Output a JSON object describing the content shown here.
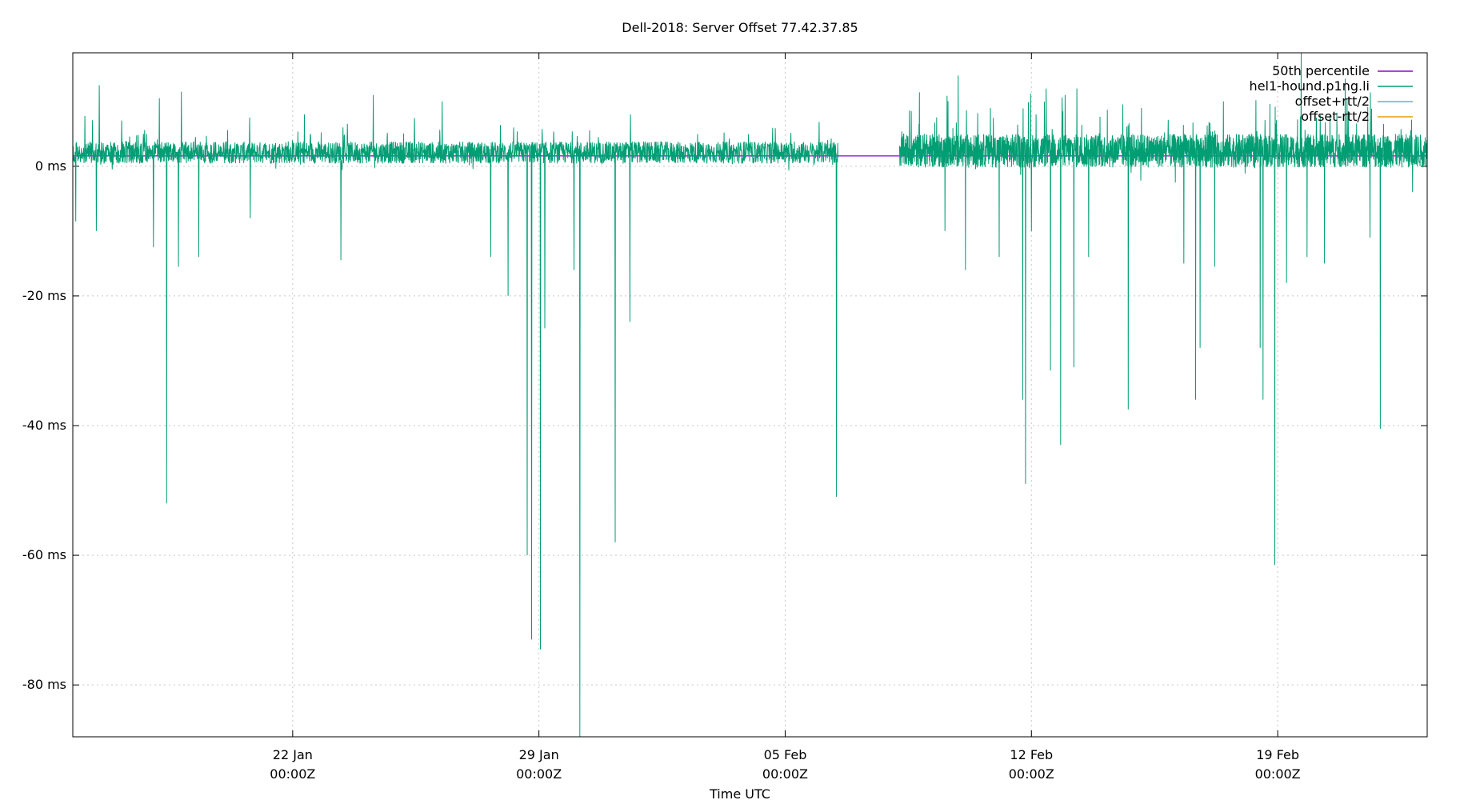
{
  "chart_data": {
    "type": "line",
    "title": "Dell-2018: Server Offset 77.42.37.85",
    "xlabel": "Time UTC",
    "ylabel": "",
    "xlim": [
      "2018-01-15T18:00Z",
      "2018-02-23T06:00Z"
    ],
    "ylim": [
      -88,
      17.5
    ],
    "grid": true,
    "legend_position": "top-right",
    "y_ticks": [
      {
        "value": 0,
        "label": "0 ms"
      },
      {
        "value": -20,
        "label": "-20 ms"
      },
      {
        "value": -40,
        "label": "-40 ms"
      },
      {
        "value": -60,
        "label": "-60 ms"
      },
      {
        "value": -80,
        "label": "-80 ms"
      }
    ],
    "x_ticks": [
      {
        "value": "2018-01-22T00:00Z",
        "line1": "22 Jan",
        "line2": "00:00Z"
      },
      {
        "value": "2018-01-29T00:00Z",
        "line1": "29 Jan",
        "line2": "00:00Z"
      },
      {
        "value": "2018-02-05T00:00Z",
        "line1": "05 Feb",
        "line2": "00:00Z"
      },
      {
        "value": "2018-02-12T00:00Z",
        "line1": "12 Feb",
        "line2": "00:00Z"
      },
      {
        "value": "2018-02-19T00:00Z",
        "line1": "19 Feb",
        "line2": "00:00Z"
      }
    ],
    "legend": [
      {
        "label": "50th percentile",
        "color": "#9400d3"
      },
      {
        "label": "hel1-hound.p1ng.li",
        "color": "#009e73"
      },
      {
        "label": "offset+rtt/2",
        "color": "#56b4e9"
      },
      {
        "label": "offset-rtt/2",
        "color": "#e69f00"
      }
    ],
    "series": [
      {
        "name": "50th percentile",
        "color": "#9400d3",
        "points": [
          [
            "2018-01-15T18:00Z",
            1.6
          ],
          [
            "2018-02-23T06:00Z",
            1.6
          ]
        ]
      },
      {
        "name": "hel1-hound.p1ng.li",
        "color": "#009e73",
        "baseline": 1.6,
        "segments": [
          {
            "start": "2018-01-15T18:00Z",
            "end": "2018-02-06T12:00Z"
          },
          {
            "start": "2018-02-08T06:00Z",
            "end": "2018-02-23T06:00Z"
          }
        ],
        "spikes": [
          [
            "2018-01-15T20:00Z",
            -8.5
          ],
          [
            "2018-01-16T12:00Z",
            12.5
          ],
          [
            "2018-01-16T10:00Z",
            -10
          ],
          [
            "2018-01-18T01:00Z",
            -12.5
          ],
          [
            "2018-01-18T05:00Z",
            10.5
          ],
          [
            "2018-01-18T10:00Z",
            -52
          ],
          [
            "2018-01-18T18:00Z",
            -15.5
          ],
          [
            "2018-01-18T20:00Z",
            11.5
          ],
          [
            "2018-01-19T08:00Z",
            -14
          ],
          [
            "2018-01-20T19:00Z",
            -8
          ],
          [
            "2018-01-22T08:00Z",
            8
          ],
          [
            "2018-01-23T09:00Z",
            -14.5
          ],
          [
            "2018-01-24T07:00Z",
            11
          ],
          [
            "2018-01-26T06:00Z",
            10
          ],
          [
            "2018-01-27T15:00Z",
            -14
          ],
          [
            "2018-01-28T03:00Z",
            -20
          ],
          [
            "2018-01-28T16:00Z",
            -60
          ],
          [
            "2018-01-28T19:00Z",
            -73
          ],
          [
            "2018-01-29T01:00Z",
            -74.5
          ],
          [
            "2018-01-29T04:00Z",
            -25
          ],
          [
            "2018-01-30T00:00Z",
            -16
          ],
          [
            "2018-01-30T04:00Z",
            -88
          ],
          [
            "2018-01-31T04:00Z",
            -58
          ],
          [
            "2018-01-31T14:00Z",
            -24
          ],
          [
            "2018-01-31T14:30Z",
            8
          ],
          [
            "2018-02-06T11:00Z",
            -51
          ],
          [
            "2018-02-08T14:00Z",
            8.5
          ],
          [
            "2018-02-09T13:00Z",
            -10
          ],
          [
            "2018-02-09T22:00Z",
            14
          ],
          [
            "2018-02-10T03:00Z",
            -16
          ],
          [
            "2018-02-10T20:00Z",
            9
          ],
          [
            "2018-02-11T02:00Z",
            -14
          ],
          [
            "2018-02-11T18:00Z",
            -36
          ],
          [
            "2018-02-11T20:00Z",
            -49
          ],
          [
            "2018-02-12T00:00Z",
            -10
          ],
          [
            "2018-02-12T10:00Z",
            12
          ],
          [
            "2018-02-12T13:00Z",
            -31.5
          ],
          [
            "2018-02-12T20:00Z",
            -43
          ],
          [
            "2018-02-12T23:00Z",
            11
          ],
          [
            "2018-02-13T05:00Z",
            -31
          ],
          [
            "2018-02-13T07:00Z",
            12
          ],
          [
            "2018-02-13T15:00Z",
            -14
          ],
          [
            "2018-02-14T18:00Z",
            -37.5
          ],
          [
            "2018-02-15T03:00Z",
            9
          ],
          [
            "2018-02-16T08:00Z",
            -15
          ],
          [
            "2018-02-16T16:00Z",
            -36
          ],
          [
            "2018-02-16T19:00Z",
            -28
          ],
          [
            "2018-02-17T05:00Z",
            -15.5
          ],
          [
            "2018-02-17T11:00Z",
            10
          ],
          [
            "2018-02-18T12:00Z",
            -28
          ],
          [
            "2018-02-18T14:00Z",
            -36
          ],
          [
            "2018-02-18T22:00Z",
            -61.5
          ],
          [
            "2018-02-19T06:00Z",
            -18
          ],
          [
            "2018-02-19T16:00Z",
            17.5
          ],
          [
            "2018-02-19T20:00Z",
            -14
          ],
          [
            "2018-02-20T08:00Z",
            -15
          ],
          [
            "2018-02-20T22:00Z",
            13.5
          ],
          [
            "2018-02-21T15:00Z",
            -11
          ],
          [
            "2018-02-21T22:00Z",
            -40.5
          ],
          [
            "2018-02-22T20:00Z",
            -4
          ]
        ]
      },
      {
        "name": "offset+rtt/2",
        "color": "#56b4e9",
        "points": []
      },
      {
        "name": "offset-rtt/2",
        "color": "#e69f00",
        "points": []
      }
    ]
  }
}
